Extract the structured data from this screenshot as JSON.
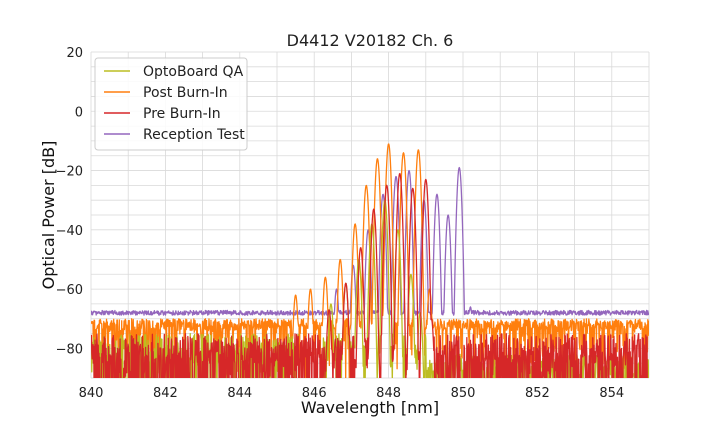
{
  "chart_data": {
    "type": "line",
    "title": "D4412 V20182 Ch. 6",
    "xlabel": "Wavelength [nm]",
    "ylabel": "Optical Power [dB]",
    "xlim": [
      840,
      855
    ],
    "ylim": [
      -90,
      20
    ],
    "xticks": [
      840,
      842,
      844,
      846,
      848,
      850,
      852,
      854
    ],
    "yticks": [
      20,
      0,
      -20,
      -40,
      -60,
      -80
    ],
    "xtick_labels": [
      "840",
      "842",
      "844",
      "846",
      "848",
      "850",
      "852",
      "854"
    ],
    "ytick_labels": [
      "20",
      "0",
      "−20",
      "−40",
      "−60",
      "−80"
    ],
    "grid": true,
    "legend_position": "top-left",
    "series": [
      {
        "name": "OptoBoard QA",
        "color": "#bcbd22",
        "noise_floor_range": [
          840,
          845.6
        ],
        "noise_floor_level": -80,
        "peaks": [
          {
            "x": 846.45,
            "y": -65
          },
          {
            "x": 846.85,
            "y": -58
          },
          {
            "x": 847.2,
            "y": -50
          },
          {
            "x": 847.55,
            "y": -38
          },
          {
            "x": 847.9,
            "y": -30
          },
          {
            "x": 848.25,
            "y": -40
          },
          {
            "x": 848.6,
            "y": -55
          },
          {
            "x": 848.85,
            "y": -68
          }
        ],
        "cutoff_x": 849.0
      },
      {
        "name": "Post Burn-In",
        "color": "#ff7f0e",
        "noise_floor_range": [
          840,
          855
        ],
        "noise_floor_level": -72,
        "peaks": [
          {
            "x": 845.5,
            "y": -62
          },
          {
            "x": 845.9,
            "y": -60
          },
          {
            "x": 846.3,
            "y": -56
          },
          {
            "x": 846.7,
            "y": -50
          },
          {
            "x": 847.1,
            "y": -38
          },
          {
            "x": 847.4,
            "y": -25
          },
          {
            "x": 847.7,
            "y": -16
          },
          {
            "x": 848.0,
            "y": -11
          },
          {
            "x": 848.4,
            "y": -14
          },
          {
            "x": 848.8,
            "y": -13
          },
          {
            "x": 849.1,
            "y": -60
          }
        ]
      },
      {
        "name": "Pre Burn-In",
        "color": "#d62728",
        "noise_floor_range": [
          840,
          855
        ],
        "noise_floor_level": -80,
        "peaks": [
          {
            "x": 846.4,
            "y": -67
          },
          {
            "x": 846.85,
            "y": -58
          },
          {
            "x": 847.25,
            "y": -46
          },
          {
            "x": 847.6,
            "y": -33
          },
          {
            "x": 847.95,
            "y": -25
          },
          {
            "x": 848.3,
            "y": -21
          },
          {
            "x": 848.65,
            "y": -26
          },
          {
            "x": 849.0,
            "y": -23
          },
          {
            "x": 849.15,
            "y": -70
          }
        ]
      },
      {
        "name": "Reception Test",
        "color": "#9467bd",
        "noise_floor_range": [
          840,
          855
        ],
        "noise_floor_level": -68,
        "peaks": [
          {
            "x": 846.6,
            "y": -60
          },
          {
            "x": 847.05,
            "y": -52
          },
          {
            "x": 847.45,
            "y": -40
          },
          {
            "x": 847.85,
            "y": -28
          },
          {
            "x": 848.2,
            "y": -22
          },
          {
            "x": 848.55,
            "y": -20
          },
          {
            "x": 848.95,
            "y": -30
          },
          {
            "x": 849.3,
            "y": -28
          },
          {
            "x": 849.6,
            "y": -35
          },
          {
            "x": 849.9,
            "y": -19
          },
          {
            "x": 850.2,
            "y": -66
          }
        ]
      }
    ]
  }
}
